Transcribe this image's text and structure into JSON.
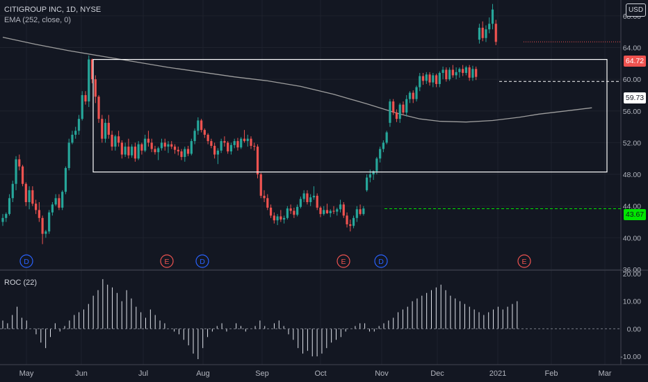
{
  "symbol": {
    "title": "CITIGROUP INC, 1D, NYSE",
    "indicator": "EMA (252, close, 0)"
  },
  "currency_button": "USD",
  "price_axis": {
    "ticks": [
      "68.00",
      "64.00",
      "60.00",
      "56.00",
      "52.00",
      "48.00",
      "44.00",
      "40.00",
      "36.00"
    ]
  },
  "roc_panel": {
    "label": "ROC (22)",
    "ticks": [
      "20.00",
      "10.00",
      "0.00",
      "-10.00"
    ]
  },
  "time_axis": {
    "labels": [
      "May",
      "Jun",
      "Jul",
      "Aug",
      "Sep",
      "Oct",
      "Nov",
      "Dec",
      "2021",
      "Feb",
      "Mar"
    ]
  },
  "badges": [
    {
      "label": "64.72",
      "bg": "#ef5350",
      "fg": "#ffffff"
    },
    {
      "label": "59.73",
      "bg": "#ffffff",
      "fg": "#131722"
    },
    {
      "label": "43.67",
      "bg": "#00e600",
      "fg": "#131722"
    }
  ],
  "events": [
    "D",
    "E",
    "D",
    "E",
    "D",
    "E"
  ],
  "colors": {
    "up": "#26a69a",
    "down": "#ef5350",
    "ema": "#9e9e9e",
    "background": "#131722",
    "grid": "#1e222d",
    "axis_text": "#b2b5be",
    "dividend": "#2962ff",
    "earnings": "#ef5350"
  },
  "chart_data": {
    "type": "candlestick",
    "price_ylim": [
      36,
      70
    ],
    "roc_ylim": [
      -13,
      21
    ],
    "x_labels": [
      "May",
      "Jun",
      "Jul",
      "Aug",
      "Sep",
      "Oct",
      "Nov",
      "Dec",
      "2021",
      "Feb",
      "Mar"
    ],
    "candles": [
      [
        42.0,
        43.0,
        41.5,
        42.5
      ],
      [
        42.5,
        43.2,
        42.0,
        43.0
      ],
      [
        43.0,
        45.5,
        42.8,
        45.0
      ],
      [
        45.0,
        47.2,
        44.5,
        46.8
      ],
      [
        46.8,
        50.3,
        46.0,
        49.9
      ],
      [
        49.9,
        50.5,
        48.5,
        49.0
      ],
      [
        49.0,
        49.2,
        46.5,
        46.8
      ],
      [
        46.8,
        47.0,
        44.0,
        44.5
      ],
      [
        44.5,
        46.5,
        43.6,
        46.0
      ],
      [
        46.0,
        46.5,
        44.0,
        44.3
      ],
      [
        44.3,
        44.8,
        43.0,
        43.5
      ],
      [
        43.5,
        44.5,
        42.0,
        42.5
      ],
      [
        42.5,
        42.8,
        39.2,
        40.5
      ],
      [
        40.5,
        41.0,
        40.0,
        40.8
      ],
      [
        40.8,
        43.5,
        40.5,
        43.2
      ],
      [
        43.2,
        44.5,
        42.8,
        44.2
      ],
      [
        44.2,
        45.5,
        44.0,
        45.0
      ],
      [
        45.0,
        45.5,
        43.5,
        43.8
      ],
      [
        43.8,
        46.0,
        43.5,
        45.8
      ],
      [
        45.8,
        49.0,
        45.5,
        48.8
      ],
      [
        48.8,
        52.5,
        48.5,
        52.0
      ],
      [
        52.0,
        53.5,
        51.8,
        53.0
      ],
      [
        53.0,
        54.0,
        52.5,
        53.5
      ],
      [
        53.5,
        55.5,
        53.0,
        55.0
      ],
      [
        55.0,
        58.5,
        54.8,
        58.0
      ],
      [
        58.0,
        58.5,
        56.8,
        57.2
      ],
      [
        57.2,
        63.0,
        56.5,
        62.5
      ],
      [
        62.5,
        62.6,
        59.5,
        60.0
      ],
      [
        60.0,
        60.5,
        57.0,
        57.8
      ],
      [
        57.8,
        58.0,
        54.5,
        55.0
      ],
      [
        55.0,
        55.5,
        52.0,
        52.5
      ],
      [
        52.5,
        55.0,
        52.0,
        54.5
      ],
      [
        54.5,
        55.5,
        52.5,
        53.0
      ],
      [
        53.0,
        53.5,
        51.0,
        51.5
      ],
      [
        51.5,
        53.0,
        51.0,
        52.8
      ],
      [
        52.8,
        53.5,
        51.5,
        52.0
      ],
      [
        52.0,
        52.3,
        50.0,
        50.5
      ],
      [
        50.5,
        52.0,
        50.2,
        51.5
      ],
      [
        51.5,
        52.5,
        50.0,
        50.4
      ],
      [
        50.4,
        51.8,
        50.1,
        51.5
      ],
      [
        51.5,
        52.0,
        49.6,
        50.0
      ],
      [
        50.0,
        52.2,
        49.8,
        51.8
      ],
      [
        51.8,
        52.0,
        50.5,
        51.0
      ],
      [
        51.0,
        53.0,
        50.8,
        52.5
      ],
      [
        52.5,
        53.5,
        51.5,
        52.0
      ],
      [
        52.0,
        52.5,
        50.8,
        51.2
      ],
      [
        51.2,
        51.6,
        50.5,
        50.8
      ],
      [
        50.8,
        51.5,
        49.8,
        51.3
      ],
      [
        51.3,
        52.5,
        51.0,
        52.0
      ],
      [
        52.0,
        52.5,
        51.0,
        51.5
      ],
      [
        51.5,
        52.2,
        50.7,
        51.8
      ],
      [
        51.8,
        52.2,
        51.2,
        51.5
      ],
      [
        51.5,
        51.8,
        50.6,
        51.1
      ],
      [
        51.1,
        51.5,
        50.4,
        50.9
      ],
      [
        50.9,
        51.2,
        49.8,
        50.2
      ],
      [
        50.2,
        51.5,
        49.6,
        51.2
      ],
      [
        51.2,
        51.6,
        50.3,
        50.6
      ],
      [
        50.6,
        52.5,
        50.4,
        52.2
      ],
      [
        52.2,
        53.8,
        51.8,
        53.5
      ],
      [
        53.5,
        55.2,
        53.0,
        54.8
      ],
      [
        54.8,
        55.0,
        53.3,
        53.6
      ],
      [
        53.6,
        53.8,
        52.6,
        53.0
      ],
      [
        53.0,
        53.2,
        51.8,
        52.2
      ],
      [
        52.2,
        52.5,
        51.3,
        51.6
      ],
      [
        51.6,
        52.0,
        50.0,
        50.5
      ],
      [
        50.5,
        51.3,
        49.3,
        51.0
      ],
      [
        51.0,
        52.5,
        50.7,
        52.2
      ],
      [
        52.2,
        52.8,
        51.5,
        52.0
      ],
      [
        52.0,
        52.2,
        50.6,
        50.9
      ],
      [
        50.9,
        52.0,
        50.5,
        51.7
      ],
      [
        51.7,
        52.5,
        51.3,
        52.2
      ],
      [
        52.2,
        52.6,
        51.0,
        51.4
      ],
      [
        51.4,
        52.7,
        51.2,
        52.5
      ],
      [
        52.5,
        53.6,
        52.0,
        52.2
      ],
      [
        52.2,
        53.0,
        51.5,
        52.5
      ],
      [
        52.5,
        52.8,
        51.2,
        51.6
      ],
      [
        51.6,
        52.0,
        51.0,
        51.5
      ],
      [
        51.5,
        51.8,
        47.5,
        48.0
      ],
      [
        48.0,
        48.2,
        45.0,
        45.3
      ],
      [
        45.3,
        46.0,
        44.5,
        45.0
      ],
      [
        45.0,
        45.5,
        43.5,
        43.8
      ],
      [
        43.8,
        44.2,
        42.5,
        42.8
      ],
      [
        42.8,
        43.2,
        41.8,
        42.2
      ],
      [
        42.2,
        43.0,
        41.6,
        42.7
      ],
      [
        42.7,
        43.5,
        42.0,
        42.3
      ],
      [
        42.3,
        42.8,
        41.8,
        42.5
      ],
      [
        42.5,
        44.0,
        42.3,
        43.7
      ],
      [
        43.7,
        44.2,
        43.0,
        43.4
      ],
      [
        43.4,
        43.8,
        42.5,
        42.9
      ],
      [
        42.9,
        44.2,
        42.7,
        43.9
      ],
      [
        43.9,
        45.2,
        43.7,
        44.9
      ],
      [
        44.9,
        46.0,
        44.5,
        45.6
      ],
      [
        45.6,
        46.0,
        44.2,
        44.5
      ],
      [
        44.5,
        45.5,
        44.0,
        45.1
      ],
      [
        45.1,
        46.5,
        44.8,
        45.3
      ],
      [
        45.3,
        45.6,
        43.5,
        43.8
      ],
      [
        43.8,
        44.0,
        42.6,
        43.0
      ],
      [
        43.0,
        44.0,
        42.8,
        43.5
      ],
      [
        43.5,
        44.3,
        43.0,
        43.1
      ],
      [
        43.1,
        43.6,
        42.6,
        43.4
      ],
      [
        43.4,
        44.0,
        43.0,
        43.3
      ],
      [
        43.3,
        43.8,
        42.8,
        43.6
      ],
      [
        43.6,
        44.8,
        43.2,
        44.2
      ],
      [
        44.2,
        44.5,
        42.5,
        42.8
      ],
      [
        42.8,
        43.2,
        41.3,
        41.7
      ],
      [
        41.7,
        42.3,
        40.8,
        41.5
      ],
      [
        41.5,
        42.8,
        41.2,
        42.5
      ],
      [
        42.5,
        44.0,
        42.0,
        43.6
      ],
      [
        43.6,
        44.2,
        42.8,
        43.0
      ],
      [
        43.0,
        44.0,
        42.8,
        43.7
      ],
      [
        46.0,
        48.0,
        45.8,
        47.6
      ],
      [
        47.6,
        48.6,
        47.0,
        48.0
      ],
      [
        48.0,
        48.5,
        47.3,
        48.4
      ],
      [
        48.4,
        50.2,
        48.0,
        50.0
      ],
      [
        50.0,
        51.5,
        49.5,
        51.2
      ],
      [
        51.2,
        52.3,
        50.8,
        52.0
      ],
      [
        52.0,
        53.5,
        51.8,
        53.3
      ],
      [
        54.5,
        57.5,
        54.0,
        57.2
      ],
      [
        57.2,
        57.5,
        55.5,
        55.8
      ],
      [
        55.8,
        56.2,
        54.6,
        55.0
      ],
      [
        55.0,
        57.0,
        54.5,
        56.8
      ],
      [
        56.8,
        57.2,
        55.5,
        55.8
      ],
      [
        55.8,
        58.0,
        55.3,
        57.5
      ],
      [
        57.5,
        58.5,
        57.0,
        58.3
      ],
      [
        58.3,
        58.6,
        57.0,
        57.5
      ],
      [
        57.5,
        59.2,
        57.2,
        59.0
      ],
      [
        59.0,
        60.8,
        58.5,
        60.4
      ],
      [
        60.4,
        60.8,
        59.3,
        59.8
      ],
      [
        59.8,
        60.9,
        59.4,
        60.6
      ],
      [
        60.6,
        60.9,
        59.2,
        59.6
      ],
      [
        59.6,
        60.8,
        59.0,
        60.5
      ],
      [
        60.5,
        60.7,
        59.0,
        59.4
      ],
      [
        59.4,
        61.0,
        59.0,
        60.8
      ],
      [
        60.8,
        61.6,
        60.0,
        61.2
      ],
      [
        61.2,
        61.5,
        59.7,
        60.0
      ],
      [
        60.0,
        61.5,
        59.8,
        61.2
      ],
      [
        61.2,
        61.8,
        60.2,
        60.5
      ],
      [
        60.5,
        61.5,
        60.0,
        60.9
      ],
      [
        60.9,
        61.5,
        60.2,
        61.3
      ],
      [
        61.3,
        61.8,
        60.4,
        60.8
      ],
      [
        60.8,
        61.7,
        60.5,
        61.5
      ],
      [
        61.5,
        61.8,
        59.8,
        60.2
      ],
      [
        60.2,
        61.7,
        59.8,
        61.3
      ],
      [
        61.3,
        61.6,
        59.9,
        60.3
      ],
      [
        65.0,
        67.0,
        64.5,
        66.5
      ],
      [
        66.5,
        67.3,
        64.8,
        65.2
      ],
      [
        65.2,
        66.8,
        64.7,
        66.3
      ],
      [
        66.3,
        67.8,
        65.8,
        67.0
      ],
      [
        67.0,
        69.5,
        66.3,
        68.8
      ],
      [
        67.0,
        67.5,
        64.3,
        64.72
      ]
    ],
    "ema": [
      [
        0,
        65.3
      ],
      [
        10,
        64.4
      ],
      [
        20,
        63.6
      ],
      [
        30,
        62.9
      ],
      [
        40,
        62.2
      ],
      [
        50,
        61.5
      ],
      [
        60,
        60.9
      ],
      [
        70,
        60.3
      ],
      [
        80,
        59.8
      ],
      [
        90,
        59.1
      ],
      [
        100,
        58.1
      ],
      [
        110,
        56.9
      ],
      [
        120,
        55.6
      ],
      [
        126,
        55.0
      ],
      [
        132,
        54.7
      ],
      [
        140,
        54.6
      ],
      [
        148,
        54.8
      ],
      [
        156,
        55.2
      ],
      [
        162,
        55.6
      ],
      [
        170,
        56.0
      ],
      [
        178,
        56.4
      ]
    ],
    "roc": [
      3,
      2,
      5,
      8,
      4,
      3,
      0,
      -2,
      -5,
      -7,
      -3,
      2,
      -1,
      1,
      3,
      5,
      6,
      7,
      9,
      12,
      14,
      18,
      16,
      15,
      13,
      10,
      14,
      11,
      8,
      6,
      4,
      7,
      5,
      3,
      2,
      0,
      -1,
      -2,
      -4,
      -6,
      -9,
      -11,
      -7,
      -3,
      -1,
      1,
      2,
      -1,
      0,
      2,
      1,
      -1,
      0,
      1,
      3,
      1,
      0,
      2,
      3,
      1,
      -2,
      -4,
      -7,
      -9,
      -8,
      -10,
      -10,
      -9,
      -7,
      -5,
      -4,
      -3,
      -1,
      0,
      1,
      2,
      2,
      -1,
      -1,
      1,
      2,
      3,
      4,
      6,
      7,
      8,
      10,
      11,
      12,
      13,
      14,
      15,
      16,
      14,
      12,
      11,
      10,
      9,
      8,
      7,
      6,
      5,
      6,
      7,
      8,
      7,
      8,
      9,
      10
    ]
  }
}
